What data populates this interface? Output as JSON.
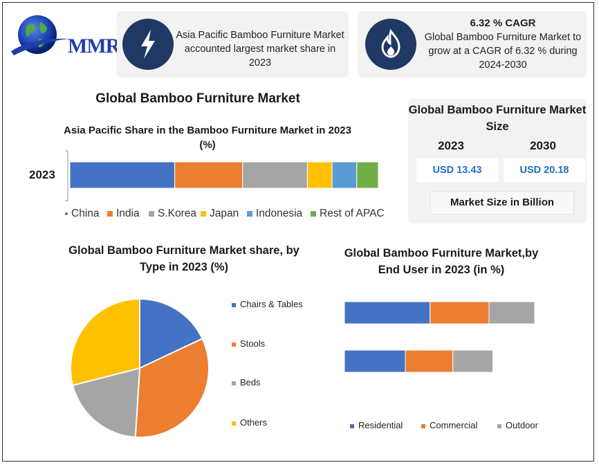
{
  "logo": {
    "text": "MMR"
  },
  "cards": {
    "highlight": {
      "icon": "lightning-icon",
      "text": "Asia Pacific Bamboo Furniture Market accounted largest market share in 2023"
    },
    "cagr": {
      "icon": "flame-icon",
      "title": "6.32 % CAGR",
      "text": "Global Bamboo Furniture Market to grow at a CAGR of 6.32 % during 2024-2030"
    }
  },
  "main_title": "Global Bamboo Furniture Market",
  "market_size": {
    "title": "Global Bamboo Furniture Market Size",
    "year_2023": "2023",
    "year_2030": "2030",
    "value_2023": "USD 13.43",
    "value_2030": "USD 20.18",
    "footer": "Market Size in Billion"
  },
  "colors": {
    "china": "#4472c4",
    "india": "#ed7d31",
    "skorea": "#a5a5a5",
    "japan": "#ffc000",
    "indonesia": "#5b9bd5",
    "rest": "#70ad47",
    "icon_bg": "#1f3864",
    "value_text": "#1f6fc5"
  },
  "chart_data": [
    {
      "type": "bar",
      "orientation": "horizontal",
      "stacked": true,
      "title": "Asia Pacific Share in the Bamboo Furniture Market in 2023 (%)",
      "categories": [
        "2023"
      ],
      "series": [
        {
          "name": "China",
          "values": [
            34
          ],
          "color": "#4472c4"
        },
        {
          "name": "India",
          "values": [
            22
          ],
          "color": "#ed7d31"
        },
        {
          "name": "S.Korea",
          "values": [
            21
          ],
          "color": "#a5a5a5"
        },
        {
          "name": "Japan",
          "values": [
            8
          ],
          "color": "#ffc000"
        },
        {
          "name": "Indonesia",
          "values": [
            8
          ],
          "color": "#5b9bd5"
        },
        {
          "name": "Rest of APAC",
          "values": [
            7
          ],
          "color": "#70ad47"
        }
      ],
      "legend": "bottom"
    },
    {
      "type": "pie",
      "title": "Global Bamboo Furniture Market share, by Type in 2023  (%)",
      "labels": [
        "Chairs & Tables",
        "Stools",
        "Beds",
        "Others"
      ],
      "values": [
        18,
        33,
        20,
        29
      ],
      "colors": [
        "#4472c4",
        "#ed7d31",
        "#a5a5a5",
        "#ffc000"
      ],
      "legend": "right"
    },
    {
      "type": "bar",
      "orientation": "horizontal",
      "stacked": true,
      "title": "Global Bamboo Furniture Market,by End User in 2023 (in %)",
      "categories": [
        "",
        ""
      ],
      "series": [
        {
          "name": "Residential",
          "values": [
            45,
            32
          ],
          "color": "#4472c4"
        },
        {
          "name": "Commercial",
          "values": [
            31,
            25
          ],
          "color": "#ed7d31"
        },
        {
          "name": "Outdoor",
          "values": [
            24,
            21
          ],
          "color": "#a5a5a5"
        }
      ],
      "legend": "bottom"
    }
  ]
}
